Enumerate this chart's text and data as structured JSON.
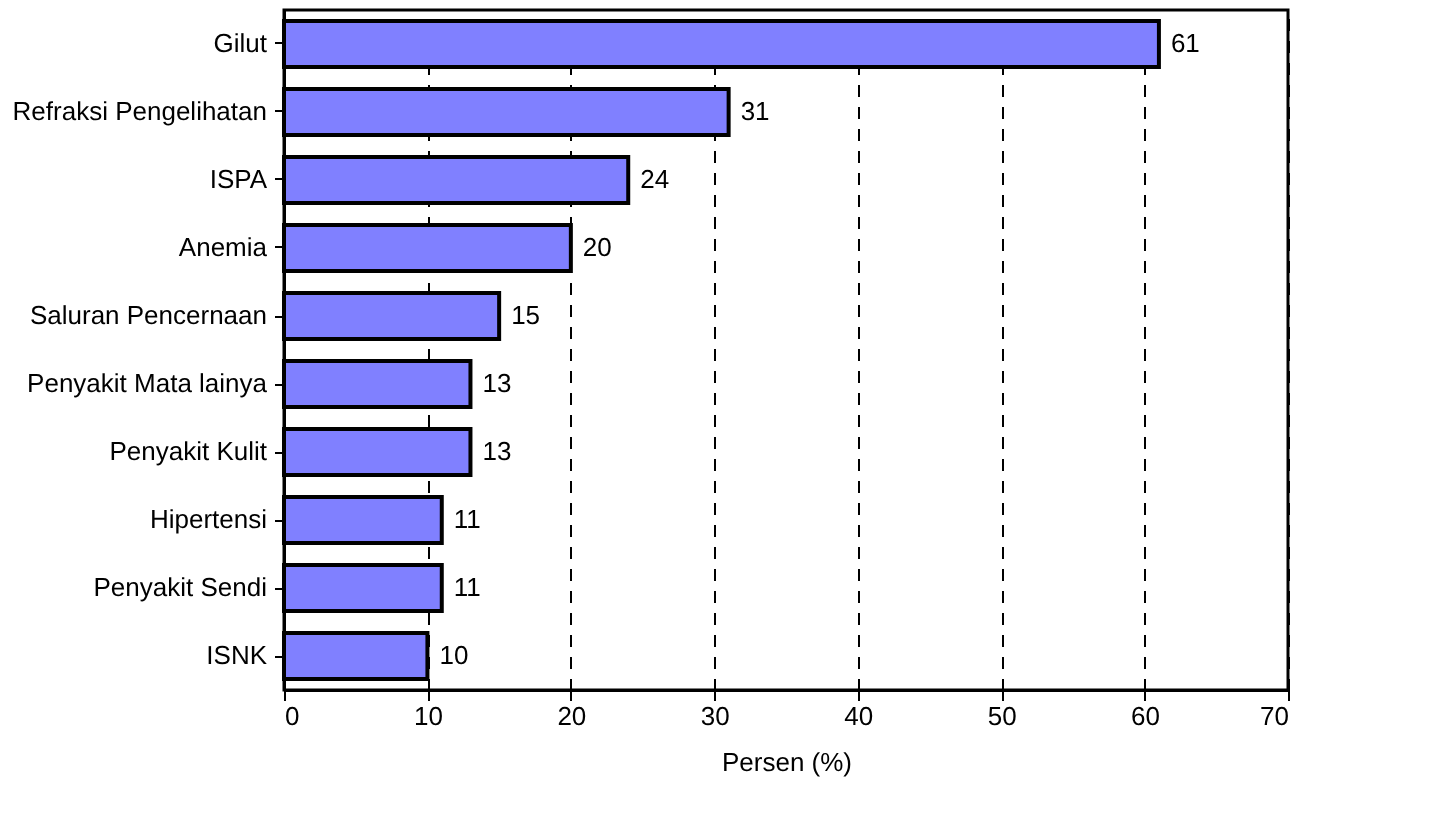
{
  "chart_data": {
    "type": "bar",
    "orientation": "horizontal",
    "xlabel": "Persen (%)",
    "categories": [
      "Gilut",
      "Refraksi Pengelihatan",
      "ISPA",
      "Anemia",
      "Saluran Pencernaan",
      "Penyakit Mata lainya",
      "Penyakit Kulit",
      "Hipertensi",
      "Penyakit Sendi",
      "ISNK"
    ],
    "values": [
      61,
      31,
      24,
      20,
      15,
      13,
      13,
      11,
      11,
      10
    ],
    "color": "#8080ff",
    "xlim": [
      0,
      70
    ],
    "xticks": [
      0,
      10,
      20,
      30,
      40,
      50,
      60,
      70
    ],
    "grid": "x",
    "data_labels": true
  }
}
